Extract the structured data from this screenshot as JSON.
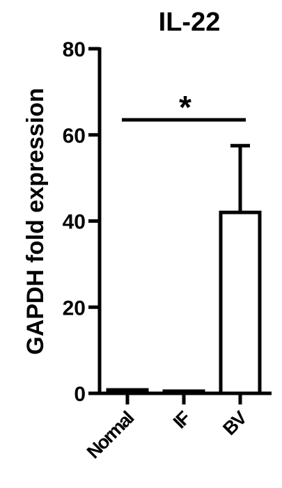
{
  "chart_data": {
    "type": "bar",
    "title": "IL-22",
    "xlabel": "",
    "ylabel": "GAPDH fold expression",
    "categories": [
      "Normal",
      "IF",
      "BV"
    ],
    "values": [
      0.8,
      0.5,
      42
    ],
    "error_upper": [
      0,
      0,
      57.5
    ],
    "ylim": [
      0,
      80
    ],
    "yticks": [
      0,
      20,
      40,
      60,
      80
    ],
    "grid": false,
    "significance": {
      "from_category": "Normal",
      "to_category": "BV",
      "y": 63.5,
      "label": "*"
    }
  }
}
